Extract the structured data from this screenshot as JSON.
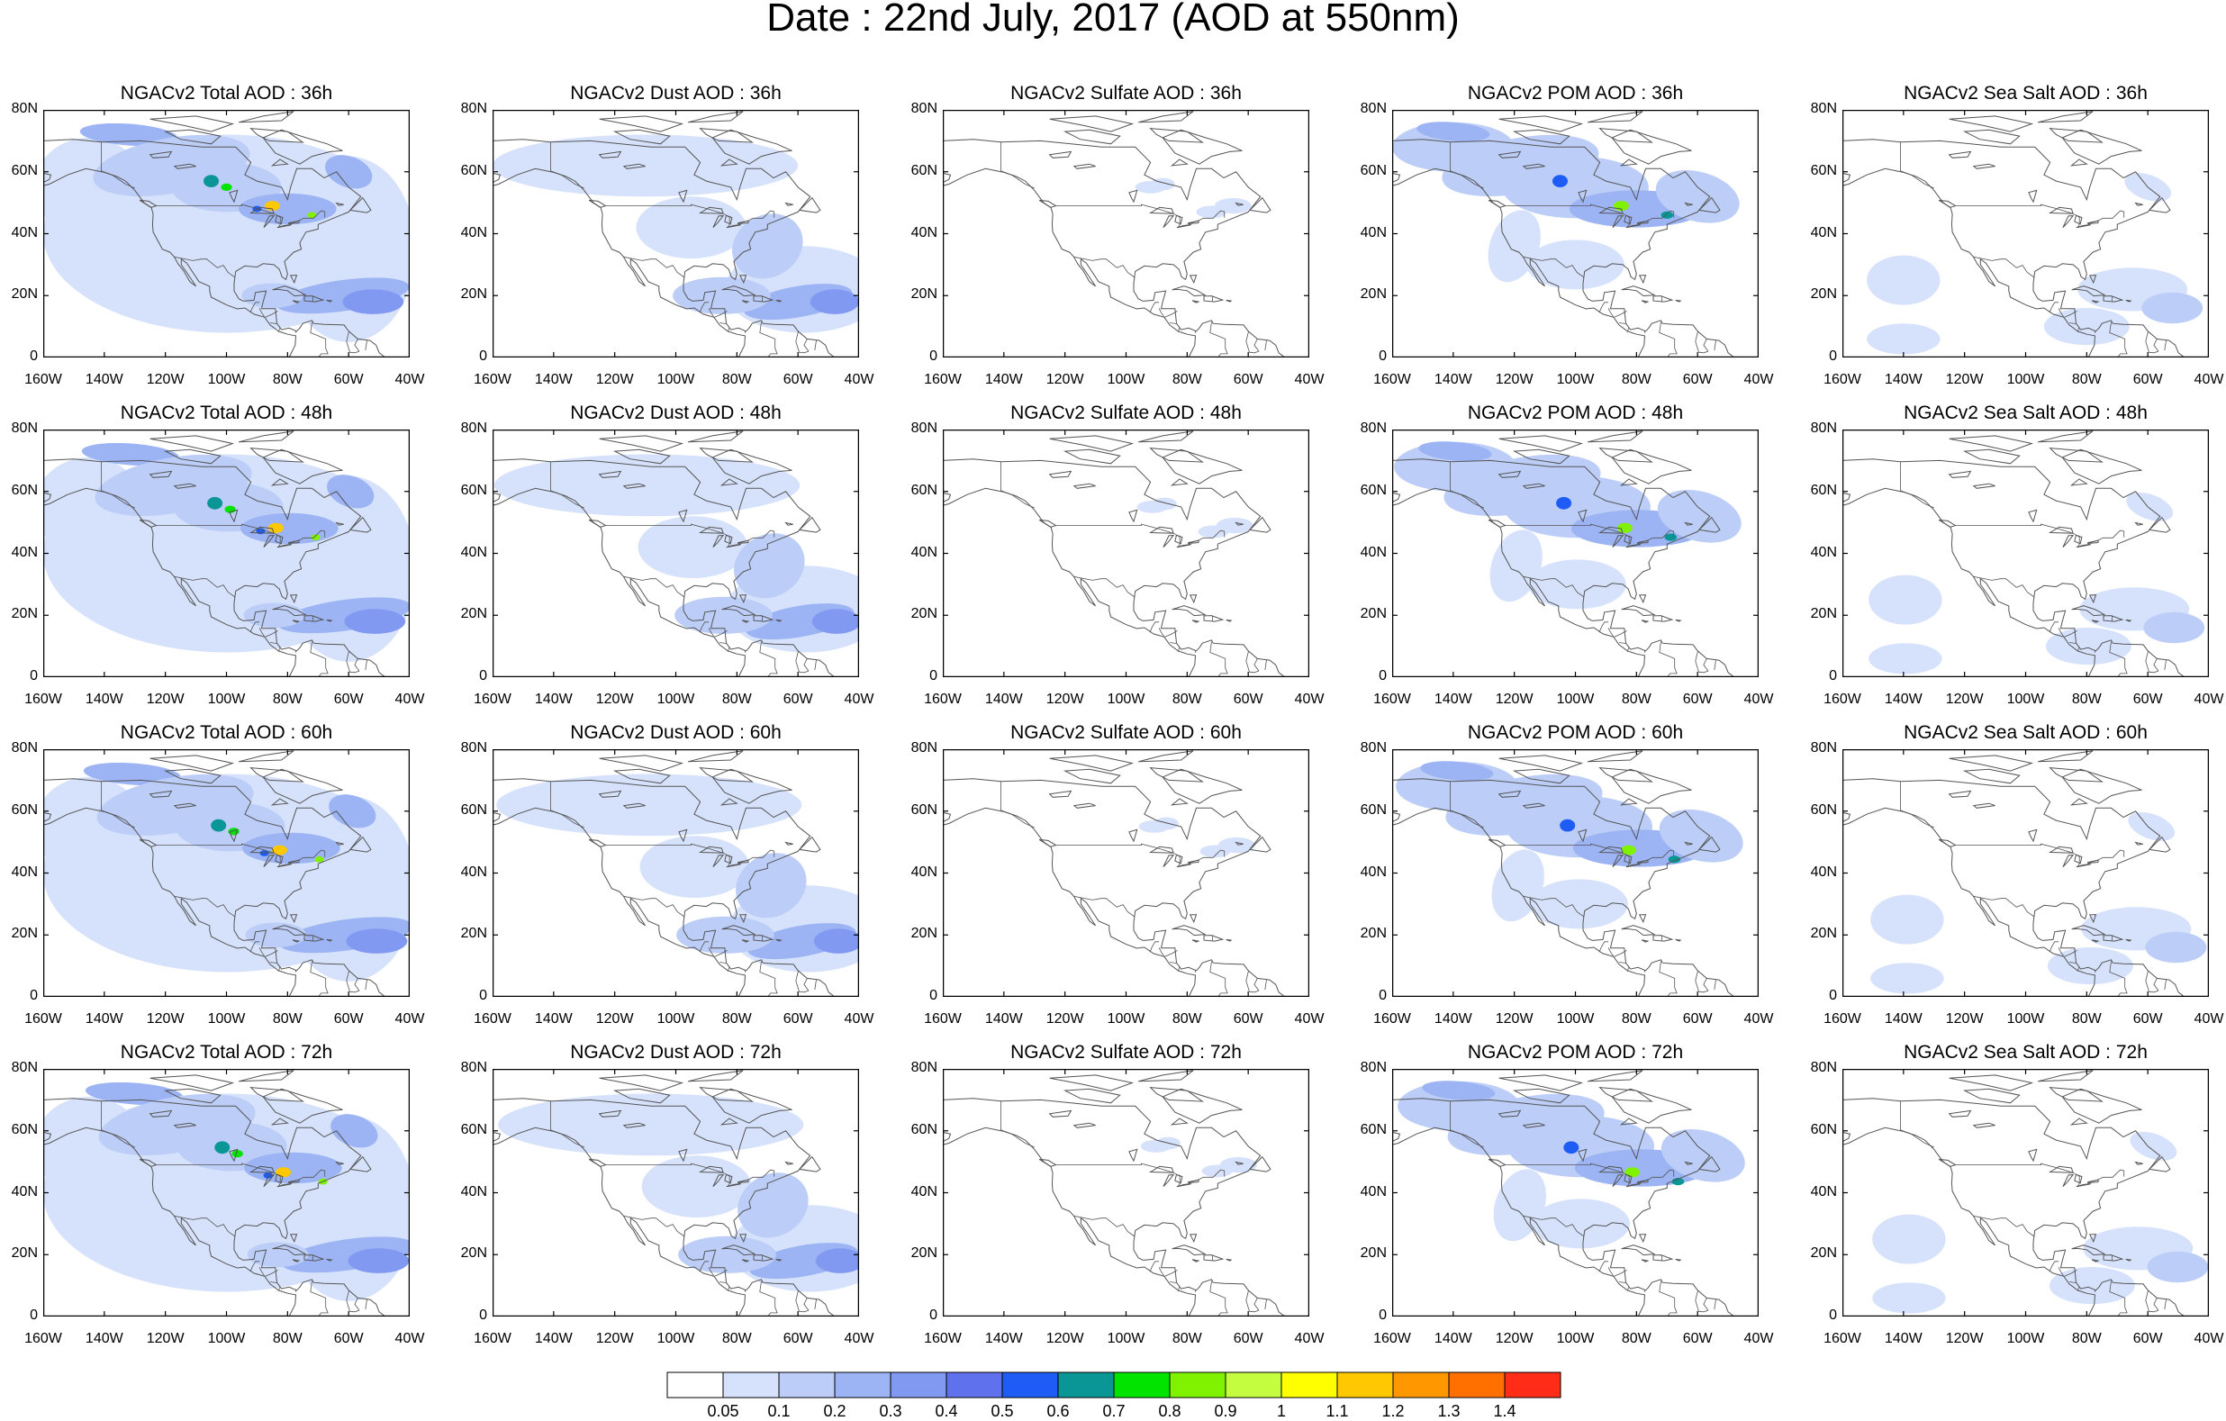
{
  "title": "Date : 22nd July, 2017 (AOD at 550nm)",
  "panel_titles": [
    [
      "NGACv2 Total AOD : 36h",
      "NGACv2 Dust AOD : 36h",
      "NGACv2 Sulfate AOD : 36h",
      "NGACv2 POM AOD : 36h",
      "NGACv2 Sea Salt AOD : 36h"
    ],
    [
      "NGACv2 Total AOD : 48h",
      "NGACv2 Dust AOD : 48h",
      "NGACv2 Sulfate AOD : 48h",
      "NGACv2 POM AOD : 48h",
      "NGACv2 Sea Salt AOD : 48h"
    ],
    [
      "NGACv2 Total AOD : 60h",
      "NGACv2 Dust AOD : 60h",
      "NGACv2 Sulfate AOD : 60h",
      "NGACv2 POM AOD : 60h",
      "NGACv2 Sea Salt AOD : 60h"
    ],
    [
      "NGACv2 Total AOD : 72h",
      "NGACv2 Dust AOD : 72h",
      "NGACv2 Sulfate AOD : 72h",
      "NGACv2 POM AOD : 72h",
      "NGACv2 Sea Salt  AOD : 72h"
    ]
  ],
  "axes": {
    "lat_labels": [
      "80N",
      "60N",
      "40N",
      "20N",
      "0"
    ],
    "lon_labels": [
      "160W",
      "140W",
      "120W",
      "100W",
      "80W",
      "60W",
      "40W"
    ]
  },
  "colorbar": {
    "labels": [
      "0.05",
      "0.1",
      "0.2",
      "0.3",
      "0.4",
      "0.5",
      "0.6",
      "0.7",
      "0.8",
      "0.9",
      "1",
      "1.1",
      "1.2",
      "1.3",
      "1.4"
    ],
    "colors": [
      "#ffffff",
      "#d6e2fb",
      "#bccdf7",
      "#9cb4f4",
      "#8199f1",
      "#5f71ec",
      "#1e5cf5",
      "#0b9696",
      "#00e400",
      "#80f200",
      "#c4fc40",
      "#ffff00",
      "#ffc800",
      "#ff9800",
      "#ff7000",
      "#ff2c18"
    ]
  },
  "map_colors": {
    "land_outline": "#555555",
    "frame": "#000000"
  }
}
